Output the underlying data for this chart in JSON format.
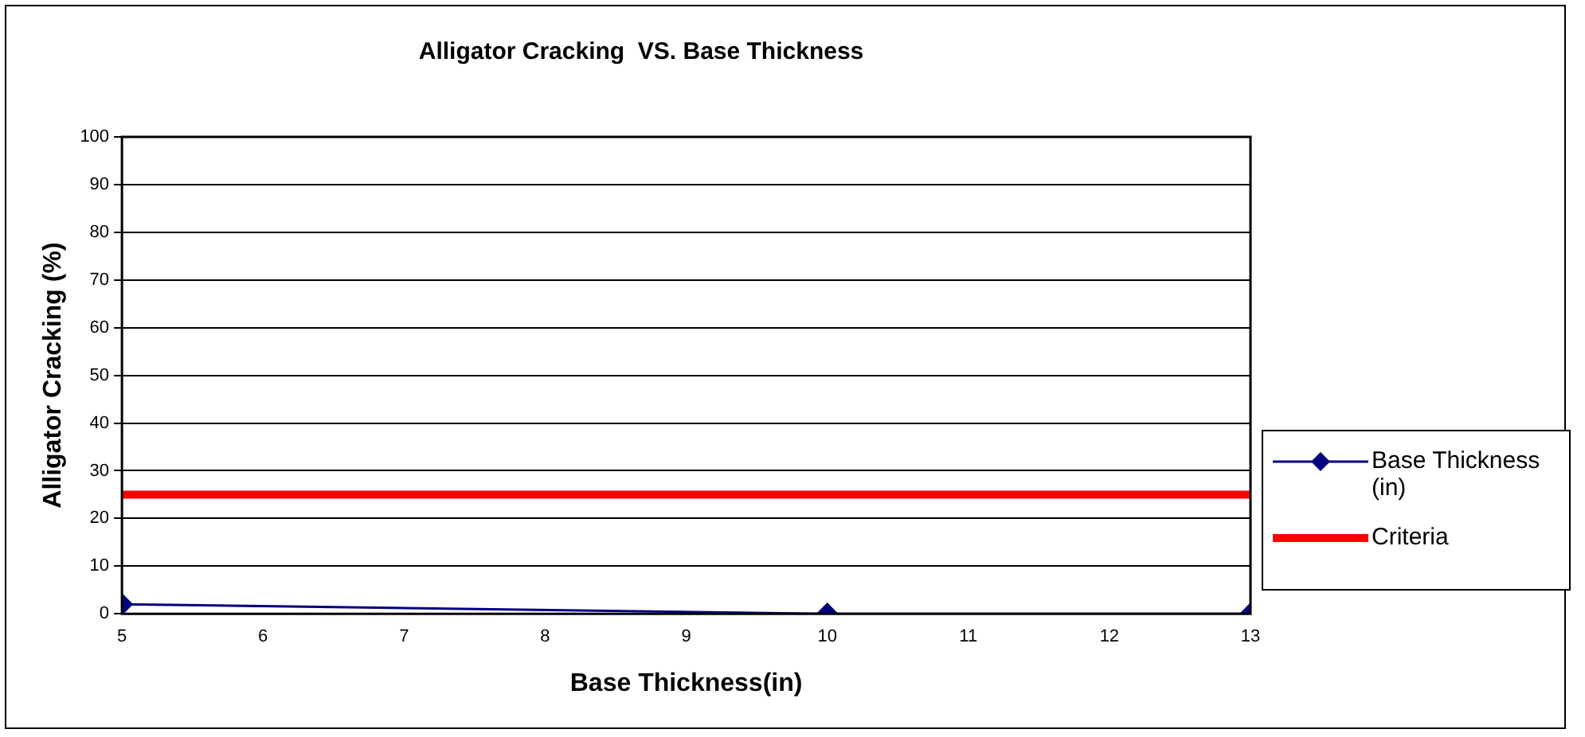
{
  "chart_data": {
    "type": "line",
    "title": "Alligator Cracking  VS. Base Thickness",
    "xlabel": "Base Thickness(in)",
    "ylabel": "Alligator Cracking (%)",
    "x": [
      5,
      10,
      13
    ],
    "series": [
      {
        "name": "Base Thickness (in)",
        "color": "#000080",
        "values": [
          2,
          0,
          0
        ],
        "marker": "diamond"
      },
      {
        "name": "Criteria",
        "color": "#ff0000",
        "x": [
          5,
          13
        ],
        "values": [
          25,
          25
        ],
        "marker": "none"
      }
    ],
    "xlim": [
      5,
      13
    ],
    "xticks": [
      5,
      6,
      7,
      8,
      9,
      10,
      11,
      12,
      13
    ],
    "ylim": [
      0,
      100
    ],
    "yticks": [
      0,
      10,
      20,
      30,
      40,
      50,
      60,
      70,
      80,
      90,
      100
    ],
    "grid": "y",
    "legend": "right"
  }
}
